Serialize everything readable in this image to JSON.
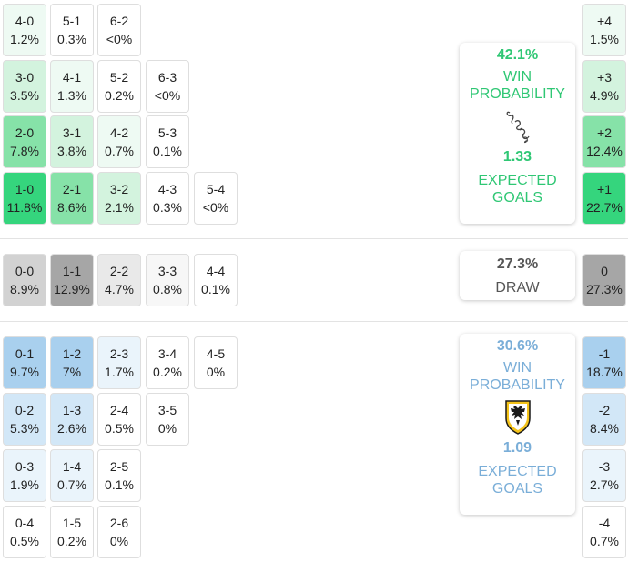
{
  "home": {
    "scores": [
      {
        "score": "4-0",
        "pct": "1.2%",
        "bg": "#eefaf3"
      },
      {
        "score": "5-1",
        "pct": "0.3%",
        "bg": "#ffffff"
      },
      {
        "score": "6-2",
        "pct": "<0%",
        "bg": "#ffffff"
      },
      {
        "score": "3-0",
        "pct": "3.5%",
        "bg": "#d3f3de"
      },
      {
        "score": "4-1",
        "pct": "1.3%",
        "bg": "#eefaf3"
      },
      {
        "score": "5-2",
        "pct": "0.2%",
        "bg": "#ffffff"
      },
      {
        "score": "6-3",
        "pct": "<0%",
        "bg": "#ffffff"
      },
      {
        "score": "2-0",
        "pct": "7.8%",
        "bg": "#86e2a8"
      },
      {
        "score": "3-1",
        "pct": "3.8%",
        "bg": "#d3f3de"
      },
      {
        "score": "4-2",
        "pct": "0.7%",
        "bg": "#eefaf3"
      },
      {
        "score": "5-3",
        "pct": "0.1%",
        "bg": "#ffffff"
      },
      {
        "score": "1-0",
        "pct": "11.8%",
        "bg": "#35d57d"
      },
      {
        "score": "2-1",
        "pct": "8.6%",
        "bg": "#86e2a8"
      },
      {
        "score": "3-2",
        "pct": "2.1%",
        "bg": "#d3f3de"
      },
      {
        "score": "4-3",
        "pct": "0.3%",
        "bg": "#ffffff"
      },
      {
        "score": "5-4",
        "pct": "<0%",
        "bg": "#ffffff"
      }
    ],
    "margins": [
      {
        "label": "+4",
        "pct": "1.5%",
        "bg": "#eefaf3"
      },
      {
        "label": "+3",
        "pct": "4.9%",
        "bg": "#d3f3de"
      },
      {
        "label": "+2",
        "pct": "12.4%",
        "bg": "#86e2a8"
      },
      {
        "label": "+1",
        "pct": "22.7%",
        "bg": "#35d57d"
      }
    ],
    "card": {
      "win_pct": "42.1%",
      "win_label": "WIN PROBABILITY",
      "xg": "1.33",
      "xg_label": "EXPECTED GOALS",
      "color": "#2fc774",
      "crest_icon": "script-monogram-crest-icon"
    }
  },
  "draw": {
    "scores": [
      {
        "score": "0-0",
        "pct": "8.9%",
        "bg": "#d2d2d2"
      },
      {
        "score": "1-1",
        "pct": "12.9%",
        "bg": "#a6a6a6"
      },
      {
        "score": "2-2",
        "pct": "4.7%",
        "bg": "#e9e9e9"
      },
      {
        "score": "3-3",
        "pct": "0.8%",
        "bg": "#f7f7f7"
      },
      {
        "score": "4-4",
        "pct": "0.1%",
        "bg": "#ffffff"
      }
    ],
    "margin": {
      "label": "0",
      "pct": "27.3%",
      "bg": "#a6a6a6"
    },
    "card": {
      "pct": "27.3%",
      "label": "DRAW",
      "color": "#555555"
    }
  },
  "away": {
    "scores": [
      {
        "score": "0-1",
        "pct": "9.7%",
        "bg": "#a9d0ee"
      },
      {
        "score": "1-2",
        "pct": "7%",
        "bg": "#a9d0ee"
      },
      {
        "score": "2-3",
        "pct": "1.7%",
        "bg": "#eaf4fb"
      },
      {
        "score": "3-4",
        "pct": "0.2%",
        "bg": "#ffffff"
      },
      {
        "score": "4-5",
        "pct": "0%",
        "bg": "#ffffff"
      },
      {
        "score": "0-2",
        "pct": "5.3%",
        "bg": "#d2e7f7"
      },
      {
        "score": "1-3",
        "pct": "2.6%",
        "bg": "#d2e7f7"
      },
      {
        "score": "2-4",
        "pct": "0.5%",
        "bg": "#ffffff"
      },
      {
        "score": "3-5",
        "pct": "0%",
        "bg": "#ffffff"
      },
      {
        "score": "0-3",
        "pct": "1.9%",
        "bg": "#eaf4fb"
      },
      {
        "score": "1-4",
        "pct": "0.7%",
        "bg": "#eaf4fb"
      },
      {
        "score": "2-5",
        "pct": "0.1%",
        "bg": "#ffffff"
      },
      {
        "score": "0-4",
        "pct": "0.5%",
        "bg": "#ffffff"
      },
      {
        "score": "1-5",
        "pct": "0.2%",
        "bg": "#ffffff"
      },
      {
        "score": "2-6",
        "pct": "0%",
        "bg": "#ffffff"
      }
    ],
    "margins": [
      {
        "label": "-1",
        "pct": "18.7%",
        "bg": "#a9d0ee"
      },
      {
        "label": "-2",
        "pct": "8.4%",
        "bg": "#d2e7f7"
      },
      {
        "label": "-3",
        "pct": "2.7%",
        "bg": "#eaf4fb"
      },
      {
        "label": "-4",
        "pct": "0.7%",
        "bg": "#ffffff"
      }
    ],
    "card": {
      "win_pct": "30.6%",
      "win_label": "WIN PROBABILITY",
      "xg": "1.09",
      "xg_label": "EXPECTED GOALS",
      "color": "#7aaed8",
      "crest_icon": "double-headed-eagle-shield-crest-icon"
    }
  }
}
